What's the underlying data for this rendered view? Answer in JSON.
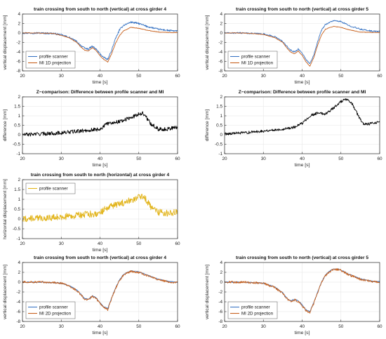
{
  "colors": {
    "blue": "#3a75c4",
    "orange": "#c8621f",
    "black": "#000000",
    "yellow": "#e2b41a",
    "grid": "#e6e6e6",
    "axis": "#262626"
  },
  "chart_data": [
    {
      "type": "line",
      "title": "train crossing from south to north (vertical) at cross girder 4",
      "xlabel": "time [s]",
      "ylabel": "vertical displacement [mm]",
      "xlim": [
        20,
        60
      ],
      "ylim": [
        -8,
        4
      ],
      "xticks": [
        20,
        30,
        40,
        50,
        60
      ],
      "yticks": [
        -8,
        -6,
        -4,
        -2,
        0,
        2,
        4
      ],
      "grid": true,
      "legend_position": "bottom-left",
      "series": [
        {
          "name": "profile scanner",
          "color_key": "blue",
          "noise": 0.18,
          "x": [
            20,
            24,
            28,
            30,
            32,
            34,
            35,
            36,
            37,
            38,
            39,
            40,
            41,
            42,
            43,
            44,
            45,
            46,
            48,
            50,
            52,
            55,
            58,
            60
          ],
          "y": [
            0,
            0,
            -0.1,
            -0.4,
            -0.9,
            -1.8,
            -2.6,
            -3.2,
            -3.4,
            -2.8,
            -3.4,
            -4.4,
            -5.2,
            -5.6,
            -3.6,
            -1.2,
            0.6,
            1.6,
            2.3,
            2.0,
            1.4,
            0.8,
            0.5,
            0.4
          ]
        },
        {
          "name": "MI 1D projection",
          "color_key": "orange",
          "noise": 0.06,
          "x": [
            20,
            24,
            28,
            30,
            32,
            34,
            35,
            36,
            37,
            38,
            39,
            40,
            41,
            42,
            43,
            44,
            45,
            46,
            48,
            50,
            52,
            55,
            58,
            60
          ],
          "y": [
            0,
            0,
            -0.1,
            -0.5,
            -1.0,
            -2.0,
            -2.9,
            -3.6,
            -3.8,
            -3.1,
            -3.7,
            -4.8,
            -5.6,
            -6.1,
            -4.4,
            -2.2,
            -0.6,
            0.4,
            1.2,
            1.0,
            0.6,
            0.2,
            0.1,
            0.1
          ]
        }
      ]
    },
    {
      "type": "line",
      "title": "train crossing from south to north (vertical) at cross girder 5",
      "xlabel": "time [s]",
      "ylabel": "vertical displacement [mm]",
      "xlim": [
        20,
        60
      ],
      "ylim": [
        -8,
        4
      ],
      "xticks": [
        20,
        30,
        40,
        50,
        60
      ],
      "yticks": [
        -8,
        -6,
        -4,
        -2,
        0,
        2,
        4
      ],
      "grid": true,
      "legend_position": "bottom-left",
      "series": [
        {
          "name": "profile scanner",
          "color_key": "blue",
          "noise": 0.14,
          "x": [
            20,
            25,
            30,
            33,
            35,
            36,
            37,
            38,
            39,
            40,
            41,
            42,
            43,
            44,
            45,
            46,
            48,
            50,
            52,
            55,
            58,
            60
          ],
          "y": [
            0,
            0,
            -0.2,
            -0.8,
            -1.8,
            -2.8,
            -3.6,
            -4.0,
            -3.4,
            -4.2,
            -5.6,
            -6.5,
            -4.6,
            -1.8,
            0.6,
            1.8,
            2.6,
            2.4,
            1.6,
            0.8,
            0.4,
            0.3
          ]
        },
        {
          "name": "MI 1D projection",
          "color_key": "orange",
          "noise": 0.05,
          "x": [
            20,
            25,
            30,
            33,
            35,
            36,
            37,
            38,
            39,
            40,
            41,
            42,
            43,
            44,
            45,
            46,
            48,
            50,
            52,
            55,
            58,
            60
          ],
          "y": [
            0,
            0,
            -0.3,
            -1.0,
            -2.0,
            -3.1,
            -4.0,
            -4.4,
            -3.8,
            -4.7,
            -6.1,
            -7.0,
            -5.2,
            -2.6,
            -0.4,
            0.8,
            1.4,
            1.2,
            0.7,
            0.2,
            0.1,
            0.1
          ]
        }
      ]
    },
    {
      "type": "line",
      "title": "Z−comparison: Difference between profile scanner and MI",
      "xlabel": "time [s]",
      "ylabel": "difference [mm]",
      "xlim": [
        20,
        60
      ],
      "ylim": [
        -1,
        2
      ],
      "xticks": [
        20,
        30,
        40,
        50,
        60
      ],
      "yticks": [
        -1,
        -0.5,
        0,
        0.5,
        1,
        1.5,
        2
      ],
      "grid": true,
      "legend_position": "none",
      "series": [
        {
          "color_key": "black",
          "noise": 0.1,
          "x": [
            20,
            25,
            30,
            35,
            40,
            42,
            45,
            48,
            50,
            51,
            52,
            53,
            55,
            57,
            60
          ],
          "y": [
            0,
            0.05,
            0.1,
            0.2,
            0.3,
            0.6,
            0.7,
            0.9,
            1.1,
            1.15,
            0.9,
            0.6,
            0.3,
            0.3,
            0.4
          ]
        }
      ]
    },
    {
      "type": "line",
      "title": "Z−comparison: Difference between profile scanner and MI",
      "xlabel": "time [s]",
      "ylabel": "difference [mm]",
      "xlim": [
        20,
        60
      ],
      "ylim": [
        -1,
        2
      ],
      "xticks": [
        20,
        30,
        40,
        50,
        60
      ],
      "yticks": [
        -1,
        -0.5,
        0,
        0.5,
        1,
        1.5,
        2
      ],
      "grid": true,
      "legend_position": "none",
      "series": [
        {
          "color_key": "black",
          "noise": 0.07,
          "x": [
            20,
            25,
            30,
            35,
            38,
            40,
            42,
            44,
            46,
            48,
            50,
            51,
            52,
            53,
            54,
            55,
            56,
            58,
            60
          ],
          "y": [
            0.05,
            0.1,
            0.2,
            0.3,
            0.4,
            0.6,
            1.0,
            1.15,
            1.1,
            1.4,
            1.75,
            1.85,
            1.8,
            1.6,
            1.2,
            0.8,
            0.55,
            0.6,
            0.7
          ]
        }
      ]
    },
    {
      "type": "line",
      "title": "train crossing from south to north (horizontal) at cross girder 4",
      "xlabel": "time [s]",
      "ylabel": "horizontal displacement [mm]",
      "xlim": [
        20,
        60
      ],
      "ylim": [
        -1,
        2
      ],
      "xticks": [
        20,
        30,
        40,
        50,
        60
      ],
      "yticks": [
        -1,
        -0.5,
        0,
        0.5,
        1,
        1.5,
        2
      ],
      "grid": true,
      "legend_position": "top-left",
      "series": [
        {
          "name": "profile scanner",
          "color_key": "yellow",
          "noise": 0.17,
          "x": [
            20,
            25,
            30,
            35,
            40,
            42,
            45,
            48,
            50,
            51,
            52,
            53,
            55,
            57,
            60
          ],
          "y": [
            0,
            0.05,
            0.1,
            0.2,
            0.3,
            0.6,
            0.75,
            0.95,
            1.15,
            1.15,
            0.95,
            0.65,
            0.35,
            0.3,
            0.35
          ]
        }
      ]
    },
    {
      "type": "line",
      "title": "train crossing from south to north (vertical) at cross girder 4",
      "xlabel": "time [s]",
      "ylabel": "vertical displacement [mm]",
      "xlim": [
        20,
        60
      ],
      "ylim": [
        -8,
        4
      ],
      "xticks": [
        20,
        30,
        40,
        50,
        60
      ],
      "yticks": [
        -8,
        -6,
        -4,
        -2,
        0,
        2,
        4
      ],
      "grid": true,
      "legend_position": "bottom-left",
      "series": [
        {
          "name": "profile scanner",
          "color_key": "blue",
          "noise": 0.1,
          "x": [
            20,
            25,
            30,
            32,
            34,
            35,
            36,
            37,
            38,
            39,
            40,
            41,
            42,
            43,
            44,
            45,
            46,
            47,
            48,
            50,
            52,
            55,
            58,
            60
          ],
          "y": [
            0,
            0,
            -0.2,
            -0.7,
            -1.6,
            -2.4,
            -3.3,
            -3.5,
            -2.8,
            -3.2,
            -4.2,
            -5.0,
            -5.4,
            -3.2,
            -1.2,
            0.4,
            1.5,
            2.0,
            2.3,
            2.1,
            1.5,
            0.6,
            0.1,
            0.0
          ]
        },
        {
          "name": "MI 2D projection",
          "color_key": "orange",
          "noise": 0.2,
          "x": [
            20,
            25,
            30,
            32,
            34,
            35,
            36,
            37,
            38,
            39,
            40,
            41,
            42,
            43,
            44,
            45,
            46,
            47,
            48,
            50,
            52,
            55,
            58,
            60
          ],
          "y": [
            0,
            0,
            -0.2,
            -0.8,
            -1.7,
            -2.5,
            -3.4,
            -3.6,
            -2.9,
            -3.3,
            -4.3,
            -5.1,
            -5.6,
            -3.3,
            -1.3,
            0.3,
            1.4,
            1.9,
            2.2,
            2.0,
            1.4,
            0.5,
            0.0,
            -0.1
          ]
        }
      ]
    },
    {
      "type": "line",
      "title": "train crossing from south to north (vertical) at cross girder 5",
      "xlabel": "time [s]",
      "ylabel": "vertical displacement [mm]",
      "xlim": [
        20,
        60
      ],
      "ylim": [
        -8,
        4
      ],
      "xticks": [
        20,
        30,
        40,
        50,
        60
      ],
      "yticks": [
        -8,
        -6,
        -4,
        -2,
        0,
        2,
        4
      ],
      "grid": true,
      "legend_position": "bottom-left",
      "series": [
        {
          "name": "profile scanner",
          "color_key": "blue",
          "noise": 0.1,
          "x": [
            20,
            25,
            30,
            33,
            35,
            36,
            37,
            38,
            39,
            40,
            41,
            42,
            43,
            44,
            45,
            46,
            47,
            48,
            49,
            50,
            52,
            55,
            58,
            60
          ],
          "y": [
            0,
            0,
            -0.2,
            -1.0,
            -2.2,
            -3.2,
            -3.8,
            -3.5,
            -3.8,
            -4.6,
            -5.6,
            -6.0,
            -4.2,
            -2.0,
            0.0,
            1.4,
            2.2,
            2.6,
            2.7,
            2.5,
            1.6,
            0.7,
            0.2,
            0.1
          ]
        },
        {
          "name": "MI 2D projection",
          "color_key": "orange",
          "noise": 0.22,
          "x": [
            20,
            25,
            30,
            33,
            35,
            36,
            37,
            38,
            39,
            40,
            41,
            42,
            43,
            44,
            45,
            46,
            47,
            48,
            49,
            50,
            52,
            55,
            58,
            60
          ],
          "y": [
            0,
            0,
            -0.2,
            -1.1,
            -2.3,
            -3.3,
            -3.9,
            -3.6,
            -3.9,
            -4.8,
            -5.8,
            -6.2,
            -4.3,
            -2.1,
            -0.1,
            1.3,
            2.1,
            2.5,
            2.6,
            2.4,
            1.5,
            0.6,
            0.1,
            0.0
          ]
        }
      ]
    }
  ]
}
